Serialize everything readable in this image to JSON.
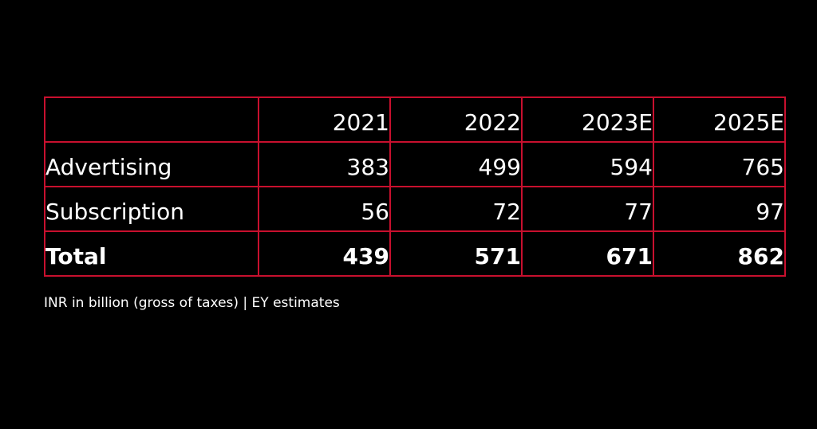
{
  "colors": {
    "background": "#000000",
    "grid": "#c8102e",
    "text": "#ffffff"
  },
  "chart_data": {
    "type": "table",
    "columns": [
      "",
      "2021",
      "2022",
      "2023E",
      "2025E"
    ],
    "rows": [
      {
        "label": "Advertising",
        "values": [
          "383",
          "499",
          "594",
          "765"
        ],
        "bold": false
      },
      {
        "label": "Subscription",
        "values": [
          "56",
          "72",
          "77",
          "97"
        ],
        "bold": false
      },
      {
        "label": "Total",
        "values": [
          "439",
          "571",
          "671",
          "862"
        ],
        "bold": true
      }
    ],
    "footnote": "INR in billion (gross of taxes) | EY estimates"
  }
}
